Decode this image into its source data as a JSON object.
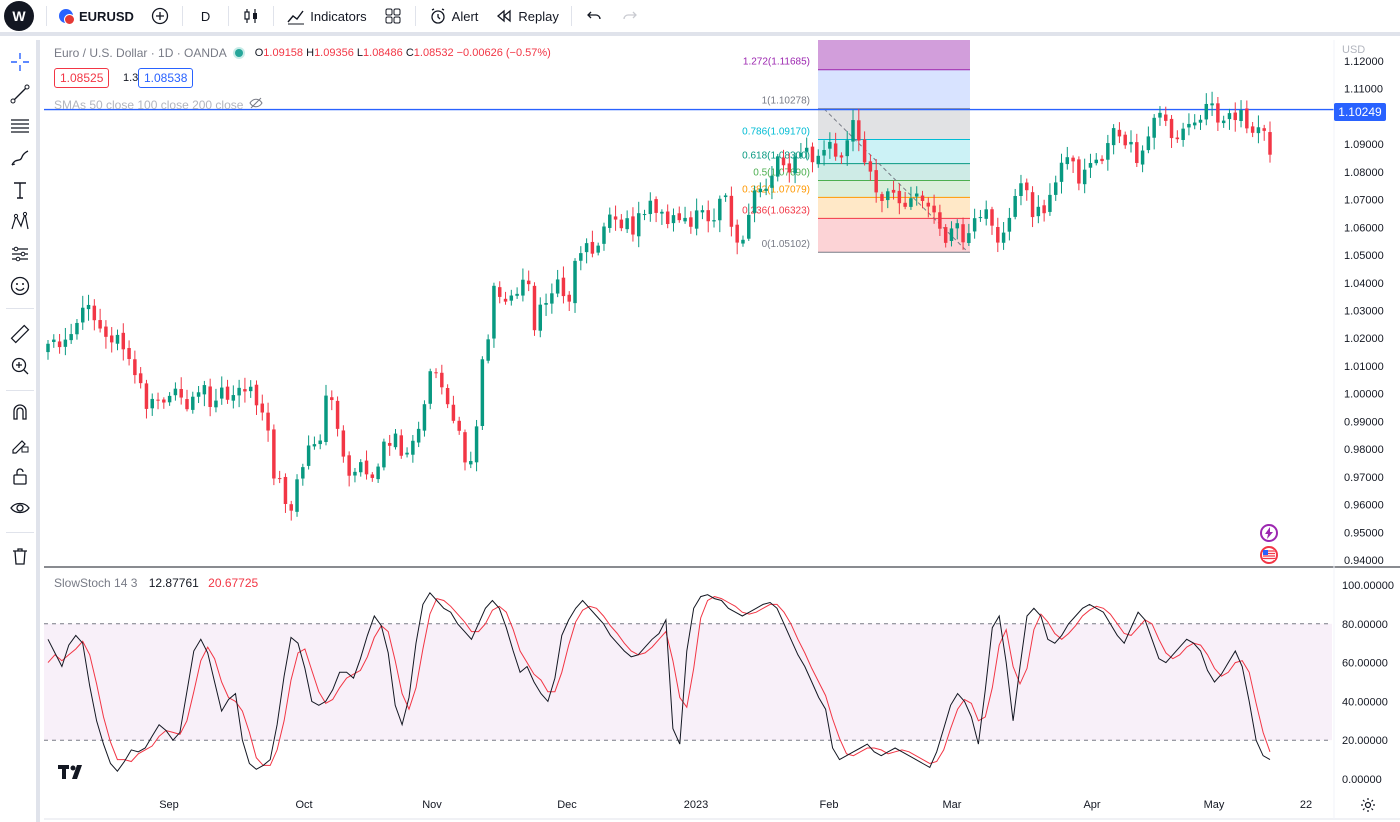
{
  "toolbar": {
    "symbol": "EURUSD",
    "interval": "D",
    "indicators_label": "Indicators",
    "alert_label": "Alert",
    "replay_label": "Replay"
  },
  "legend": {
    "title": "Euro / U.S. Dollar · 1D · OANDA",
    "open_key": "O",
    "open": "1.09158",
    "high_key": "H",
    "high": "1.09356",
    "low_key": "L",
    "low": "1.08486",
    "close_key": "C",
    "close": "1.08532",
    "change": "−0.00626 (−0.57%)",
    "sell_price": "1.08525",
    "spread": "1.3",
    "buy_price": "1.08538",
    "sma_text": "SMAs 50 close 100 close 200 close"
  },
  "stoch": {
    "name": "SlowStoch 14 3",
    "k_value": "12.87761",
    "d_value": "20.67725"
  },
  "price_axis": {
    "currency": "USD",
    "current_price": "1.10249",
    "labels": [
      "1.12000",
      "1.11000",
      "1.10000",
      "1.09000",
      "1.08000",
      "1.07000",
      "1.06000",
      "1.05000",
      "1.04000",
      "1.03000",
      "1.02000",
      "1.01000",
      "1.00000",
      "0.99000",
      "0.98000",
      "0.97000",
      "0.96000",
      "0.95000",
      "0.94000"
    ]
  },
  "stoch_axis": {
    "labels": [
      "100.00000",
      "80.00000",
      "60.00000",
      "40.00000",
      "20.00000",
      "0.00000"
    ]
  },
  "time_axis": {
    "labels": [
      "Sep",
      "Oct",
      "Nov",
      "Dec",
      "2023",
      "Feb",
      "Mar",
      "Apr",
      "May",
      "22"
    ]
  },
  "fib": {
    "levels": [
      {
        "label": "1.272(1.11685)",
        "value": 1.11685,
        "color": "#9c27b0"
      },
      {
        "label": "1(1.10278)",
        "value": 1.10278,
        "color": "#787b86"
      },
      {
        "label": "0.786(1.09170)",
        "value": 1.0917,
        "color": "#00bcd4"
      },
      {
        "label": "0.618(1.08300)",
        "value": 1.083,
        "color": "#089981"
      },
      {
        "label": "0.5(1.07690)",
        "value": 1.0769,
        "color": "#4caf50"
      },
      {
        "label": "0.382(1.07079)",
        "value": 1.07079,
        "color": "#ff9800"
      },
      {
        "label": "0.236(1.06323)",
        "value": 1.06323,
        "color": "#f23645"
      },
      {
        "label": "0(1.05102)",
        "value": 1.05102,
        "color": "#787b86"
      }
    ]
  },
  "chart_data": {
    "type": "candlestick",
    "title": "Euro / U.S. Dollar · 1D · OANDA",
    "ylim": [
      0.935,
      1.125
    ],
    "horizontal_line": 1.10249,
    "close": [
      1.018,
      1.0195,
      1.0168,
      1.0195,
      1.0215,
      1.0255,
      1.031,
      1.032,
      1.0265,
      1.0235,
      1.0205,
      1.0185,
      1.0212,
      1.016,
      1.0125,
      1.0067,
      1.0038,
      0.9945,
      0.9981,
      0.9975,
      0.9968,
      0.9992,
      1.0018,
      0.9986,
      0.9944,
      0.9989,
      1.0005,
      1.0031,
      0.9952,
      0.9975,
      1.0022,
      0.9978,
      0.9995,
      1.0021,
      1.0008,
      1.0025,
      0.9958,
      0.9932,
      0.9867,
      0.9694,
      0.9693,
      0.9602,
      0.9578,
      0.9691,
      0.9735,
      0.9813,
      0.9818,
      0.9831,
      0.9993,
      0.9977,
      0.9873,
      0.9773,
      0.9704,
      0.9718,
      0.9753,
      0.9709,
      0.9696,
      0.9737,
      0.9827,
      0.9812,
      0.9856,
      0.9776,
      0.9787,
      0.983,
      0.9873,
      0.9962,
      1.0081,
      1.0077,
      1.0023,
      0.9962,
      0.9902,
      0.9866,
      0.9752,
      0.9757,
      0.9882,
      1.0124,
      1.0196,
      1.0389,
      1.0349,
      1.0332,
      1.0354,
      1.036,
      1.0411,
      1.0395,
      1.0229,
      1.0321,
      1.0327,
      1.0362,
      1.0412,
      1.0352,
      1.0332,
      1.0479,
      1.0507,
      1.0543,
      1.0505,
      1.0534,
      1.0603,
      1.0646,
      1.0628,
      1.0597,
      1.0633,
      1.0574,
      1.0651,
      1.0648,
      1.0696,
      1.0652,
      1.0656,
      1.0612,
      1.0644,
      1.0626,
      1.0634,
      1.0602,
      1.0661,
      1.0662,
      1.0622,
      1.0626,
      1.0703,
      1.0715,
      1.0602,
      1.0545,
      1.0555,
      1.0645,
      1.0733,
      1.0739,
      1.0739,
      1.0786,
      1.0856,
      1.0824,
      1.0798,
      1.0856,
      1.0868,
      1.0887,
      1.0835,
      1.0858,
      1.0879,
      1.0908,
      1.0855,
      1.0852,
      1.0914,
      1.0987,
      1.0913,
      1.0834,
      1.0801,
      1.0726,
      1.0695,
      1.073,
      1.0725,
      1.0687,
      1.0674,
      1.0705,
      1.0722,
      1.0695,
      1.0675,
      1.0654,
      1.0595,
      1.0544,
      1.0596,
      1.0615,
      1.0546,
      1.0579,
      1.0633,
      1.0637,
      1.0665,
      1.0606,
      1.0545,
      1.0581,
      1.0634,
      1.0713,
      1.0759,
      1.0734,
      1.0637,
      1.0674,
      1.0651,
      1.0717,
      1.0762,
      1.0833,
      1.0853,
      1.0838,
      1.0758,
      1.0808,
      1.0832,
      1.0844,
      1.0839,
      1.0904,
      1.0958,
      1.0928,
      1.0896,
      1.0908,
      1.0832,
      1.0877,
      1.0928,
      1.0995,
      1.1013,
      1.0984,
      1.0922,
      1.0918,
      1.0956,
      1.0973,
      1.0978,
      1.0988,
      1.1045,
      1.1047,
      1.0978,
      1.0985,
      1.1012,
      1.0987,
      1.1023,
      1.0957,
      1.0941,
      1.0961,
      1.0948,
      1.0862
    ],
    "stoch_k": [
      72,
      65,
      58,
      69,
      74,
      70,
      48,
      30,
      18,
      8,
      4,
      9,
      15,
      14,
      16,
      22,
      28,
      25,
      20,
      24,
      45,
      66,
      72,
      65,
      50,
      35,
      41,
      44,
      20,
      8,
      5,
      7,
      10,
      28,
      53,
      73,
      70,
      57,
      40,
      38,
      40,
      46,
      55,
      55,
      52,
      62,
      74,
      84,
      79,
      65,
      38,
      28,
      42,
      70,
      90,
      96,
      92,
      88,
      86,
      80,
      76,
      72,
      80,
      88,
      92,
      88,
      78,
      66,
      55,
      58,
      50,
      44,
      40,
      52,
      74,
      82,
      88,
      92,
      88,
      84,
      80,
      74,
      70,
      66,
      63,
      64,
      68,
      72,
      75,
      82,
      26,
      18,
      66,
      88,
      94,
      95,
      93,
      92,
      88,
      86,
      84,
      86,
      88,
      90,
      91,
      88,
      80,
      72,
      64,
      58,
      50,
      42,
      36,
      16,
      10,
      12,
      14,
      16,
      18,
      14,
      12,
      14,
      16,
      14,
      12,
      10,
      8,
      6,
      14,
      26,
      38,
      44,
      40,
      32,
      18,
      46,
      78,
      84,
      60,
      30,
      58,
      84,
      88,
      84,
      72,
      70,
      74,
      80,
      84,
      88,
      90,
      88,
      86,
      80,
      74,
      70,
      78,
      86,
      82,
      72,
      62,
      60,
      64,
      68,
      72,
      70,
      66,
      56,
      50,
      54,
      60,
      66,
      58,
      40,
      20,
      12,
      10
    ],
    "stoch_d": [
      60,
      64,
      61,
      64,
      67,
      71,
      64,
      49,
      32,
      19,
      10,
      10,
      9,
      13,
      15,
      17,
      22,
      25,
      24,
      23,
      30,
      45,
      61,
      68,
      62,
      50,
      42,
      40,
      35,
      24,
      11,
      7,
      7,
      15,
      30,
      51,
      65,
      67,
      56,
      45,
      39,
      41,
      47,
      52,
      54,
      56,
      63,
      73,
      79,
      76,
      61,
      44,
      36,
      47,
      67,
      85,
      93,
      92,
      89,
      85,
      81,
      76,
      76,
      80,
      87,
      89,
      86,
      77,
      66,
      60,
      54,
      51,
      45,
      45,
      55,
      69,
      81,
      87,
      89,
      88,
      84,
      79,
      75,
      70,
      66,
      64,
      65,
      68,
      72,
      76,
      61,
      42,
      37,
      57,
      83,
      92,
      94,
      93,
      91,
      89,
      86,
      85,
      86,
      88,
      90,
      90,
      86,
      80,
      72,
      65,
      57,
      50,
      43,
      31,
      21,
      13,
      12,
      14,
      16,
      16,
      15,
      13,
      14,
      15,
      14,
      12,
      10,
      8,
      9,
      15,
      26,
      36,
      41,
      39,
      30,
      32,
      47,
      69,
      77,
      58,
      49,
      57,
      77,
      85,
      81,
      75,
      72,
      75,
      79,
      84,
      87,
      89,
      88,
      85,
      80,
      75,
      74,
      78,
      82,
      80,
      72,
      65,
      62,
      64,
      68,
      70,
      69,
      64,
      57,
      53,
      55,
      60,
      61,
      55,
      39,
      24,
      14
    ]
  }
}
